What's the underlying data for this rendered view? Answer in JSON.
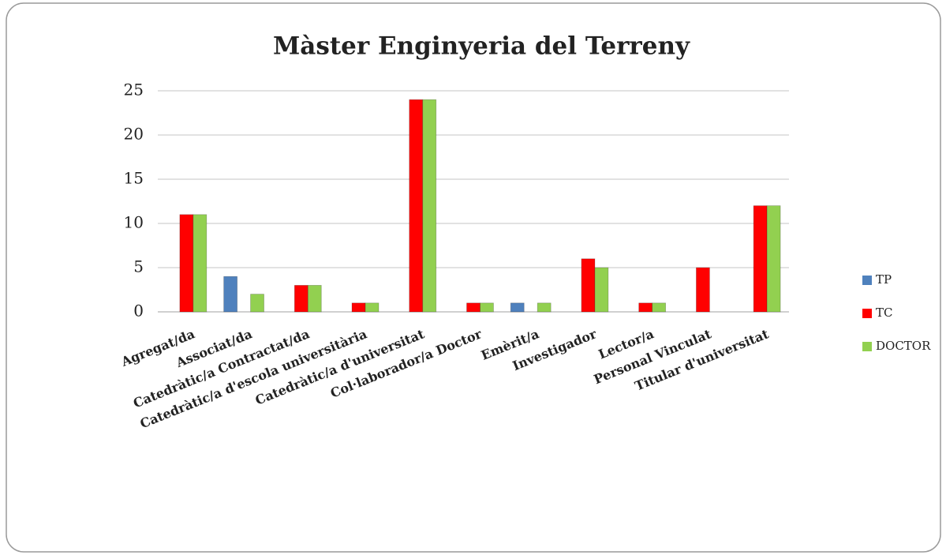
{
  "chart_data": {
    "type": "bar",
    "title": "Màster Enginyeria del Terreny",
    "categories": [
      "Agregat/da",
      "Associat/da",
      "Catedràtic/a Contractat/da",
      "Catedràtic/a d'escola universitària",
      "Catedràtic/a d'universitat",
      "Col·laborador/a Doctor",
      "Emèrit/a",
      "Investigador",
      "Lector/a",
      "Personal Vinculat",
      "Titular d'universitat"
    ],
    "series": [
      {
        "name": "TP",
        "color": "#4f81bd",
        "values": [
          0,
          4,
          0,
          0,
          0,
          0,
          1,
          0,
          0,
          0,
          0
        ]
      },
      {
        "name": "TC",
        "color": "#ff0000",
        "values": [
          11,
          0,
          3,
          1,
          24,
          1,
          0,
          6,
          1,
          5,
          12
        ]
      },
      {
        "name": "DOCTOR",
        "color": "#92d050",
        "values": [
          11,
          2,
          3,
          1,
          24,
          1,
          1,
          5,
          1,
          0,
          12
        ]
      }
    ],
    "ylim": [
      0,
      25
    ],
    "yticks": [
      0,
      5,
      10,
      15,
      20,
      25
    ],
    "grid": true,
    "legend": "right"
  }
}
